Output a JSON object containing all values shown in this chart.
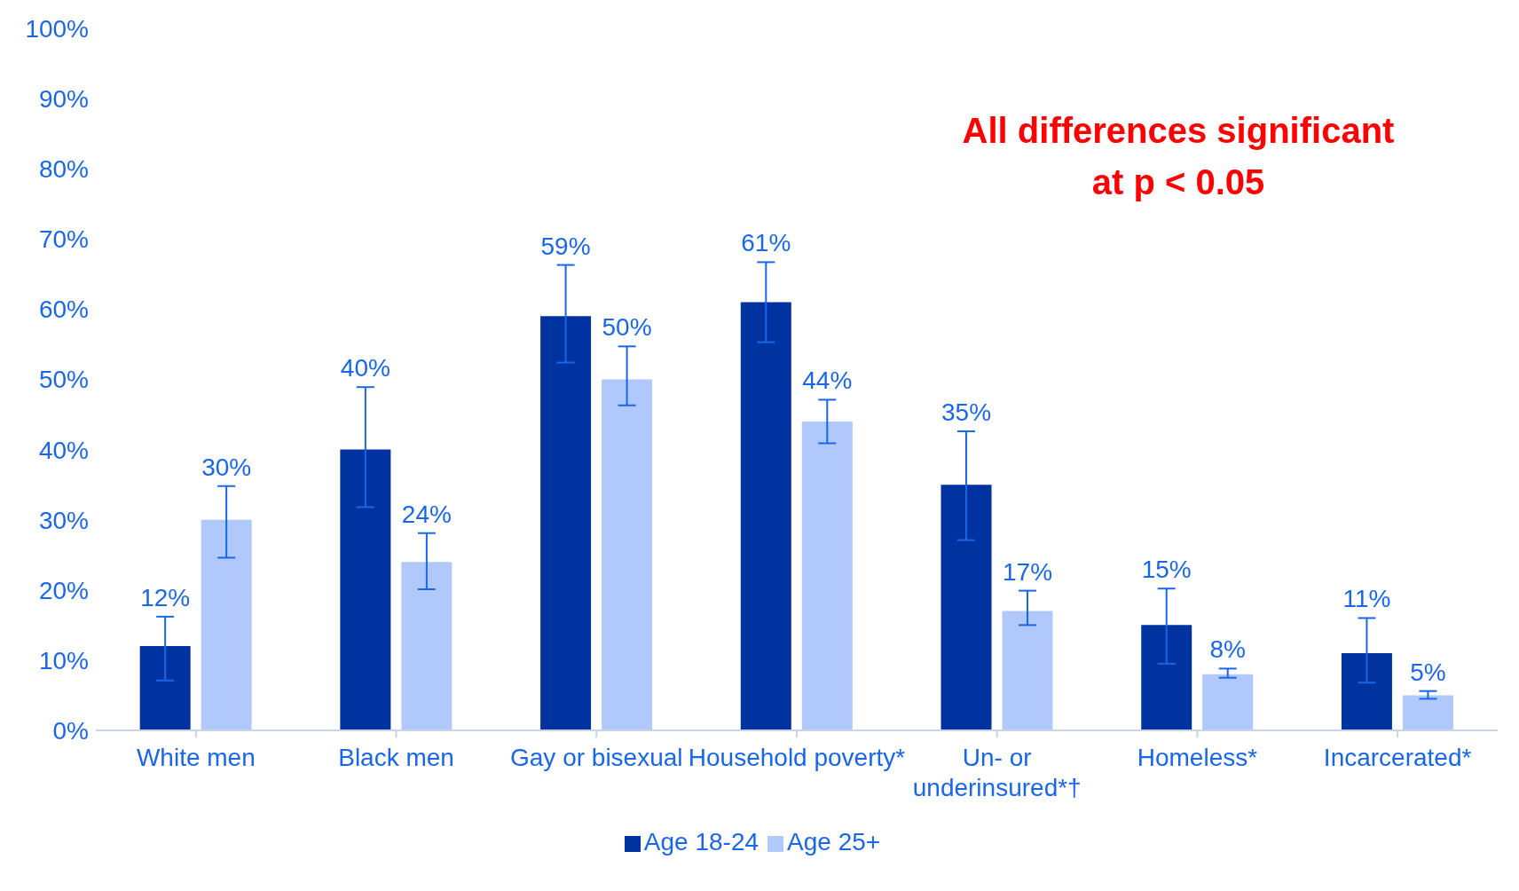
{
  "chart_data": {
    "type": "bar",
    "categories": [
      "White men",
      "Black men",
      "Gay or bisexual",
      "Household poverty*",
      "Un- or underinsured*†",
      "Homeless*",
      "Incarcerated*"
    ],
    "series": [
      {
        "name": "Age 18-24",
        "color": "#0033a0",
        "values": [
          12,
          40,
          59,
          61,
          35,
          15,
          11
        ],
        "value_labels": [
          "12%",
          "40%",
          "59%",
          "61%",
          "35%",
          "15%",
          "11%"
        ],
        "errors": [
          [
            7.1,
            16.2
          ],
          [
            31.8,
            48.9
          ],
          [
            52.4,
            66.3
          ],
          [
            55.3,
            66.7
          ],
          [
            27.1,
            42.6
          ],
          [
            9.5,
            20.2
          ],
          [
            6.8,
            16.0
          ]
        ]
      },
      {
        "name": "Age 25+",
        "color": "#b0c8fb",
        "values": [
          30,
          24,
          50,
          44,
          17,
          8,
          5
        ],
        "value_labels": [
          "30%",
          "24%",
          "50%",
          "44%",
          "17%",
          "8%",
          "5%"
        ],
        "errors": [
          [
            24.6,
            34.8
          ],
          [
            20.1,
            28.1
          ],
          [
            46.3,
            54.7
          ],
          [
            40.9,
            47.1
          ],
          [
            15.0,
            19.9
          ],
          [
            7.5,
            8.8
          ],
          [
            4.5,
            5.6
          ]
        ]
      }
    ],
    "ylim": [
      0,
      100
    ],
    "yticks": [
      {
        "value": 0,
        "label": "0%"
      },
      {
        "value": 10,
        "label": "10%"
      },
      {
        "value": 20,
        "label": "20%"
      },
      {
        "value": 30,
        "label": "30%"
      },
      {
        "value": 40,
        "label": "40%"
      },
      {
        "value": 50,
        "label": "50%"
      },
      {
        "value": 60,
        "label": "60%"
      },
      {
        "value": 70,
        "label": "70%"
      },
      {
        "value": 80,
        "label": "80%"
      },
      {
        "value": 90,
        "label": "90%"
      },
      {
        "value": 100,
        "label": "100%"
      }
    ],
    "grid": false,
    "legend": "bottom",
    "annotations": [
      "All differences significant at p < 0.05"
    ]
  }
}
